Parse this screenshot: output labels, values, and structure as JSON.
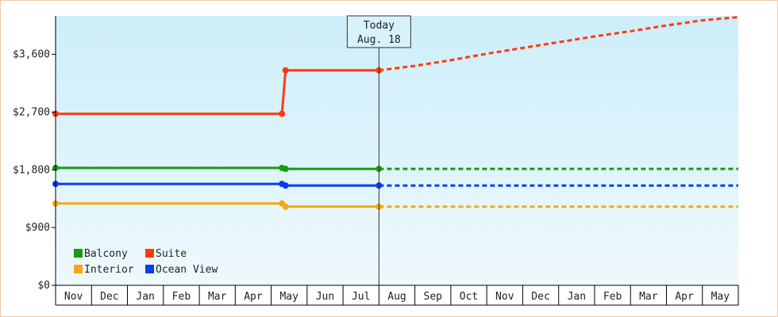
{
  "chart_data": {
    "type": "line",
    "y_tick_labels": [
      "$0",
      "$900",
      "$1,800",
      "$2,700",
      "$3,600"
    ],
    "y_tick_values": [
      0,
      900,
      1800,
      2700,
      3600
    ],
    "ylim": [
      0,
      4200
    ],
    "categories": [
      "Nov",
      "Dec",
      "Jan",
      "Feb",
      "Mar",
      "Apr",
      "May",
      "Jun",
      "Jul",
      "Aug",
      "Sep",
      "Oct",
      "Nov",
      "Dec",
      "Jan",
      "Feb",
      "Mar",
      "Apr",
      "May"
    ],
    "today_marker": {
      "line1": "Today",
      "line2": "Aug. 18",
      "x": 9.0
    },
    "grid": false,
    "legend_placement": "bottom-left",
    "series": [
      {
        "name": "Suite",
        "color": "#ff3a10",
        "historical": [
          [
            0,
            2673
          ],
          [
            6.3,
            2673
          ],
          [
            6.4,
            3350
          ],
          [
            9.0,
            3350
          ]
        ],
        "forecast": [
          [
            9.0,
            3350
          ],
          [
            10,
            3420
          ],
          [
            11,
            3510
          ],
          [
            12,
            3610
          ],
          [
            13,
            3700
          ],
          [
            14,
            3790
          ],
          [
            15,
            3880
          ],
          [
            16,
            3960
          ],
          [
            17,
            4050
          ],
          [
            18,
            4130
          ],
          [
            19,
            4180
          ]
        ],
        "markers": [
          [
            0,
            2673
          ],
          [
            6.3,
            2673
          ],
          [
            6.4,
            3350
          ],
          [
            9.0,
            3350
          ]
        ]
      },
      {
        "name": "Balcony",
        "color": "#1a9a10",
        "historical": [
          [
            0,
            1830
          ],
          [
            6.3,
            1830
          ],
          [
            6.4,
            1815
          ],
          [
            9.0,
            1815
          ]
        ],
        "forecast": [
          [
            9.0,
            1815
          ],
          [
            19,
            1815
          ]
        ],
        "markers": [
          [
            0,
            1830
          ],
          [
            6.3,
            1830
          ],
          [
            6.4,
            1815
          ],
          [
            9.0,
            1815
          ]
        ]
      },
      {
        "name": "Ocean View",
        "color": "#0a3ee8",
        "historical": [
          [
            0,
            1580
          ],
          [
            6.3,
            1580
          ],
          [
            6.4,
            1555
          ],
          [
            9.0,
            1555
          ]
        ],
        "forecast": [
          [
            9.0,
            1555
          ],
          [
            19,
            1555
          ]
        ],
        "markers": [
          [
            0,
            1580
          ],
          [
            6.3,
            1580
          ],
          [
            6.4,
            1555
          ],
          [
            9.0,
            1555
          ]
        ]
      },
      {
        "name": "Interior",
        "color": "#f5a810",
        "historical": [
          [
            0,
            1275
          ],
          [
            6.3,
            1275
          ],
          [
            6.4,
            1225
          ],
          [
            9.0,
            1225
          ]
        ],
        "forecast": [
          [
            9.0,
            1225
          ],
          [
            19,
            1225
          ]
        ],
        "markers": [
          [
            0,
            1275
          ],
          [
            6.3,
            1275
          ],
          [
            6.4,
            1225
          ],
          [
            9.0,
            1225
          ]
        ]
      }
    ],
    "legend": [
      {
        "name": "Balcony",
        "color": "#1a9a10"
      },
      {
        "name": "Suite",
        "color": "#ff3a10"
      },
      {
        "name": "Interior",
        "color": "#f5a810"
      },
      {
        "name": "Ocean View",
        "color": "#0a3ee8"
      }
    ]
  }
}
